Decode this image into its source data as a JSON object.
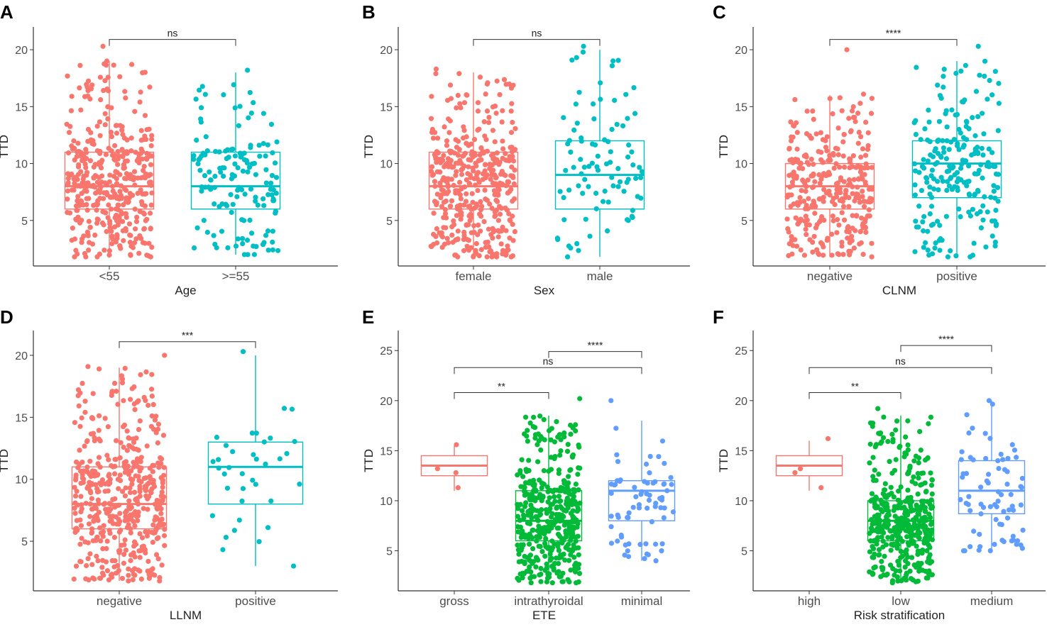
{
  "figure": {
    "colors": {
      "red": "#F8766D",
      "teal": "#00BFC4",
      "green": "#00BA38",
      "blue": "#619CFF",
      "axis": "#333333",
      "text": "#222222"
    }
  },
  "chart_data": [
    {
      "panel": "A",
      "type": "boxplot",
      "xlabel": "Age",
      "ylabel": "TTD",
      "ylim": [
        1,
        22
      ],
      "yticks": [
        5,
        10,
        15,
        20
      ],
      "categories": [
        "<55",
        ">=55"
      ],
      "boxes": [
        {
          "name": "<55",
          "color": "red",
          "min": 1.8,
          "q1": 6,
          "median": 8,
          "q3": 11,
          "max": 19,
          "n": 420,
          "points_max": 20.3
        },
        {
          "name": ">=55",
          "color": "teal",
          "min": 2,
          "q1": 6,
          "median": 8,
          "q3": 11,
          "max": 18,
          "n": 150,
          "points_max": 18.2
        }
      ],
      "brackets": [
        {
          "from": 0,
          "to": 1,
          "y": 20.9,
          "label": "ns"
        }
      ]
    },
    {
      "panel": "B",
      "type": "boxplot",
      "xlabel": "Sex",
      "ylabel": "TTD",
      "ylim": [
        1,
        22
      ],
      "yticks": [
        5,
        10,
        15,
        20
      ],
      "categories": [
        "female",
        "male"
      ],
      "boxes": [
        {
          "name": "female",
          "color": "red",
          "min": 1.8,
          "q1": 6,
          "median": 8,
          "q3": 11,
          "max": 18,
          "n": 420,
          "points_max": 18.3
        },
        {
          "name": "male",
          "color": "teal",
          "min": 1.8,
          "q1": 6,
          "median": 9,
          "q3": 12,
          "max": 20,
          "n": 90,
          "points_max": 20.3
        }
      ],
      "brackets": [
        {
          "from": 0,
          "to": 1,
          "y": 20.9,
          "label": "ns"
        }
      ]
    },
    {
      "panel": "C",
      "type": "boxplot",
      "xlabel": "CLNM",
      "ylabel": "TTD",
      "ylim": [
        1,
        22
      ],
      "yticks": [
        5,
        10,
        15,
        20
      ],
      "categories": [
        "negative",
        "positive"
      ],
      "boxes": [
        {
          "name": "negative",
          "color": "red",
          "min": 1.8,
          "q1": 6,
          "median": 8,
          "q3": 10,
          "max": 16,
          "n": 330,
          "points_max": 20
        },
        {
          "name": "positive",
          "color": "teal",
          "min": 1.8,
          "q1": 7,
          "median": 10,
          "q3": 12,
          "max": 19,
          "n": 220,
          "points_max": 20.3
        }
      ],
      "brackets": [
        {
          "from": 0,
          "to": 1,
          "y": 20.9,
          "label": "****"
        }
      ]
    },
    {
      "panel": "D",
      "type": "boxplot",
      "xlabel": "LLNM",
      "ylabel": "TTD",
      "ylim": [
        1,
        22
      ],
      "yticks": [
        5,
        10,
        15,
        20
      ],
      "categories": [
        "negative",
        "positive"
      ],
      "boxes": [
        {
          "name": "negative",
          "color": "red",
          "min": 1.8,
          "q1": 6,
          "median": 8,
          "q3": 11,
          "max": 19,
          "n": 480,
          "points_max": 20
        },
        {
          "name": "positive",
          "color": "teal",
          "min": 3,
          "q1": 8,
          "median": 11,
          "q3": 13,
          "max": 20,
          "n": 35,
          "points_max": 20.3
        }
      ],
      "brackets": [
        {
          "from": 0,
          "to": 1,
          "y": 21.1,
          "label": "***"
        }
      ]
    },
    {
      "panel": "E",
      "type": "boxplot",
      "xlabel": "ETE",
      "ylabel": "TTD",
      "ylim": [
        1,
        27
      ],
      "yticks": [
        5,
        10,
        15,
        20,
        25
      ],
      "categories": [
        "gross",
        "intrathyroidal",
        "minimal"
      ],
      "boxes": [
        {
          "name": "gross",
          "color": "red",
          "min": 11,
          "q1": 12.5,
          "median": 13.5,
          "q3": 14.5,
          "max": 15.5,
          "n": 4,
          "points_max": 15.6
        },
        {
          "name": "intrathyroidal",
          "color": "green",
          "min": 1.8,
          "q1": 6,
          "median": 8,
          "q3": 11,
          "max": 18.5,
          "n": 420,
          "points_max": 20.2
        },
        {
          "name": "minimal",
          "color": "blue",
          "min": 4,
          "q1": 8,
          "median": 11,
          "q3": 12,
          "max": 18,
          "n": 70,
          "points_max": 20
        }
      ],
      "brackets": [
        {
          "from": 0,
          "to": 1,
          "y": 20.8,
          "label": "**"
        },
        {
          "from": 0,
          "to": 2,
          "y": 23.3,
          "label": "ns"
        },
        {
          "from": 1,
          "to": 2,
          "y": 24.9,
          "label": "****"
        }
      ]
    },
    {
      "panel": "F",
      "type": "boxplot",
      "xlabel": "Risk stratification",
      "ylabel": "TTD",
      "ylim": [
        1,
        27
      ],
      "yticks": [
        5,
        10,
        15,
        20,
        25
      ],
      "categories": [
        "high",
        "low",
        "medium"
      ],
      "boxes": [
        {
          "name": "high",
          "color": "red",
          "min": 11,
          "q1": 12.5,
          "median": 13.5,
          "q3": 14.5,
          "max": 16,
          "n": 4,
          "points_max": 16.2
        },
        {
          "name": "low",
          "color": "green",
          "min": 1.8,
          "q1": 6,
          "median": 8,
          "q3": 10,
          "max": 18.5,
          "n": 420,
          "points_max": 19.2
        },
        {
          "name": "medium",
          "color": "blue",
          "min": 5,
          "q1": 8.7,
          "median": 11,
          "q3": 14,
          "max": 20,
          "n": 75,
          "points_max": 20
        }
      ],
      "brackets": [
        {
          "from": 0,
          "to": 1,
          "y": 20.8,
          "label": "**"
        },
        {
          "from": 0,
          "to": 2,
          "y": 23.3,
          "label": "ns"
        },
        {
          "from": 1,
          "to": 2,
          "y": 25.5,
          "label": "****"
        }
      ]
    }
  ]
}
